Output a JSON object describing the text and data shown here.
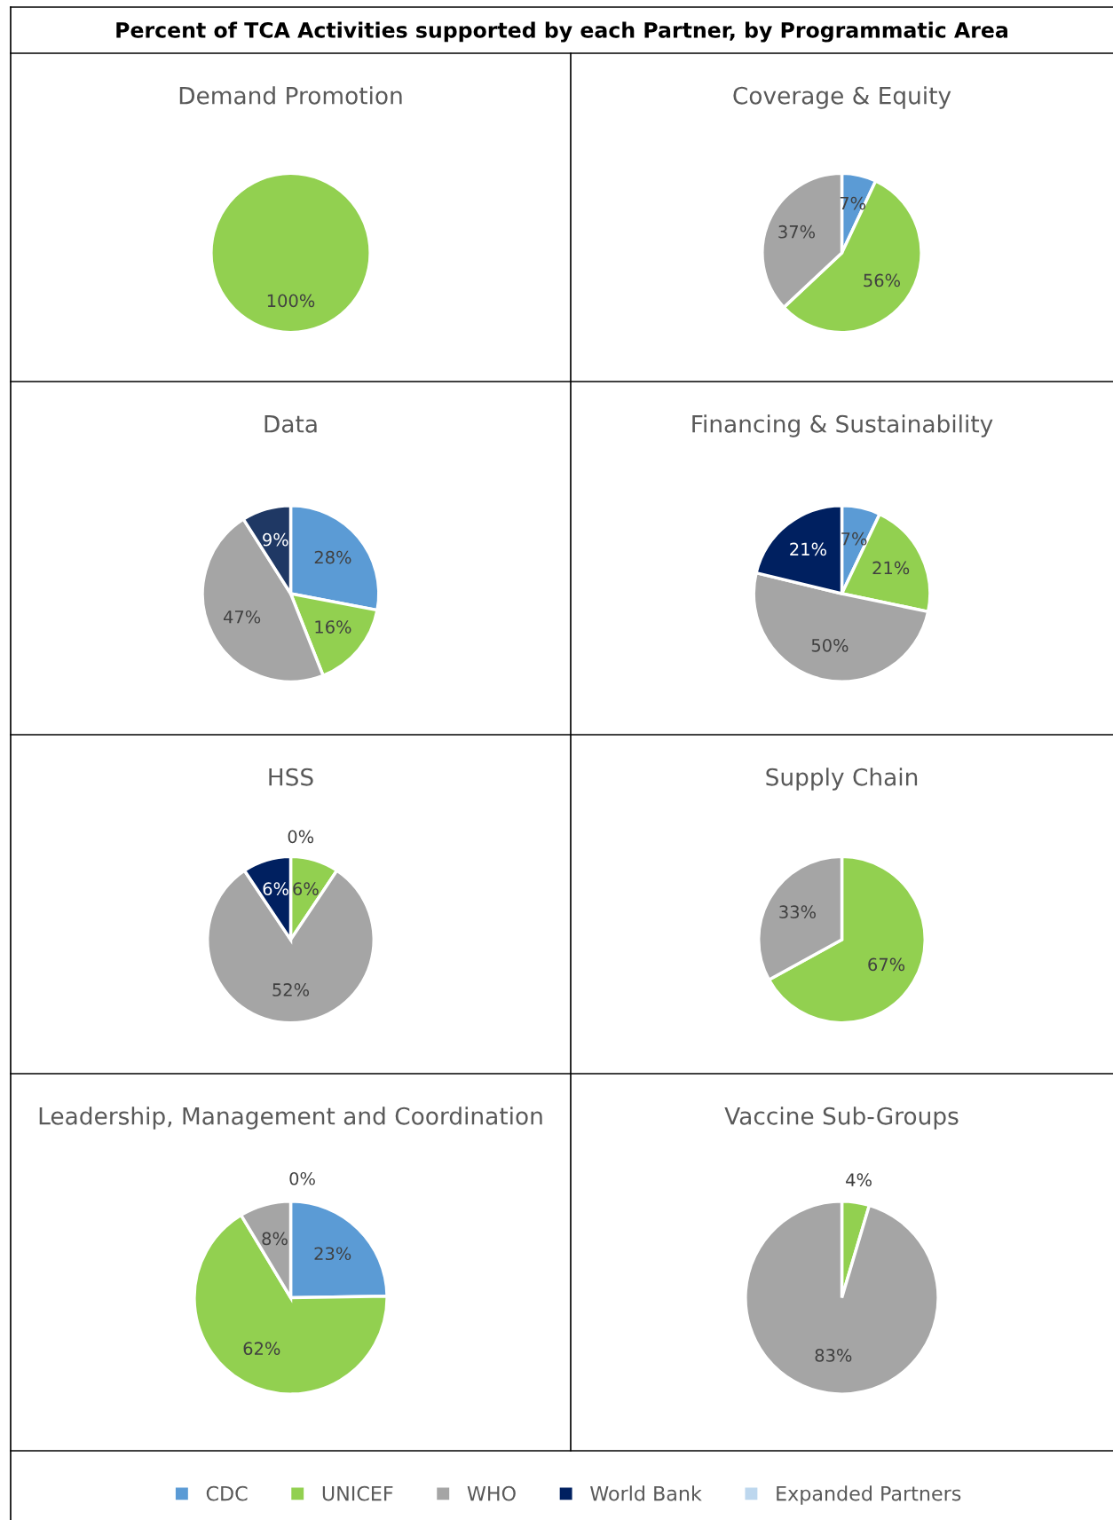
{
  "chart_data": [
    {
      "type": "pie",
      "title": "Demand Promotion",
      "categories": [
        "CDC",
        "UNICEF",
        "WHO",
        "World Bank",
        "Expanded Partners"
      ],
      "values": [
        null,
        100,
        null,
        null,
        null
      ],
      "value_labels": [
        null,
        "100%",
        null,
        null,
        null
      ],
      "colors": [
        "#5b9bd5",
        "#92d050",
        "#a5a5a5",
        "#002060",
        "#bdd7ee"
      ],
      "legend": "bottom",
      "annotations": [
        "Percent of TCA Activities supported by each Partner, by Programmatic Area"
      ]
    },
    {
      "type": "pie",
      "title": "Coverage & Equity",
      "values": [
        7,
        56,
        37,
        null,
        null
      ],
      "value_labels": [
        "7%",
        "56%",
        "37%",
        null,
        null
      ],
      "colors": [
        "#5b9bd5",
        "#92d050",
        "#a5a5a5",
        "#002060",
        "#bdd7ee"
      ]
    },
    {
      "type": "pie",
      "title": "Data",
      "values": [
        28,
        16,
        47,
        9,
        null
      ],
      "value_labels": [
        "28%",
        "16%",
        "47%",
        "9%",
        null
      ],
      "colors": [
        "#5b9bd5",
        "#92d050",
        "#a5a5a5",
        "#1f3864",
        "#bdd7ee"
      ]
    },
    {
      "type": "pie",
      "title": "Financing & Sustainability",
      "values": [
        7,
        21,
        50,
        21,
        null
      ],
      "value_labels": [
        "7%",
        "21%",
        "50%",
        "21%",
        null
      ],
      "colors": [
        "#5b9bd5",
        "#92d050",
        "#a5a5a5",
        "#002060",
        "#bdd7ee"
      ]
    },
    {
      "type": "pie",
      "title": "HSS",
      "values": [
        0,
        6,
        52,
        6,
        null
      ],
      "value_labels": [
        "0%",
        "6%",
        "52%",
        "6%",
        null
      ],
      "colors": [
        "#5b9bd5",
        "#92d050",
        "#a5a5a5",
        "#002060",
        "#bdd7ee"
      ]
    },
    {
      "type": "pie",
      "title": "Supply Chain",
      "values": [
        null,
        67,
        33,
        null,
        null
      ],
      "value_labels": [
        null,
        "67%",
        "33%",
        null,
        null
      ],
      "colors": [
        "#5b9bd5",
        "#92d050",
        "#a5a5a5",
        "#002060",
        "#bdd7ee"
      ]
    },
    {
      "type": "pie",
      "title": "Leadership, Management and Coordination",
      "values": [
        23,
        62,
        8,
        0,
        null
      ],
      "value_labels": [
        "23%",
        "62%",
        "8%",
        "0%",
        null
      ],
      "colors": [
        "#5b9bd5",
        "#92d050",
        "#a5a5a5",
        "#002060",
        "#bdd7ee"
      ]
    },
    {
      "type": "pie",
      "title": "Vaccine Sub-Groups",
      "values": [
        null,
        4,
        83,
        null,
        null
      ],
      "value_labels": [
        null,
        "4%",
        "83%",
        null,
        null
      ],
      "colors": [
        "#5b9bd5",
        "#92d050",
        "#a5a5a5",
        "#002060",
        "#bdd7ee"
      ]
    }
  ]
}
